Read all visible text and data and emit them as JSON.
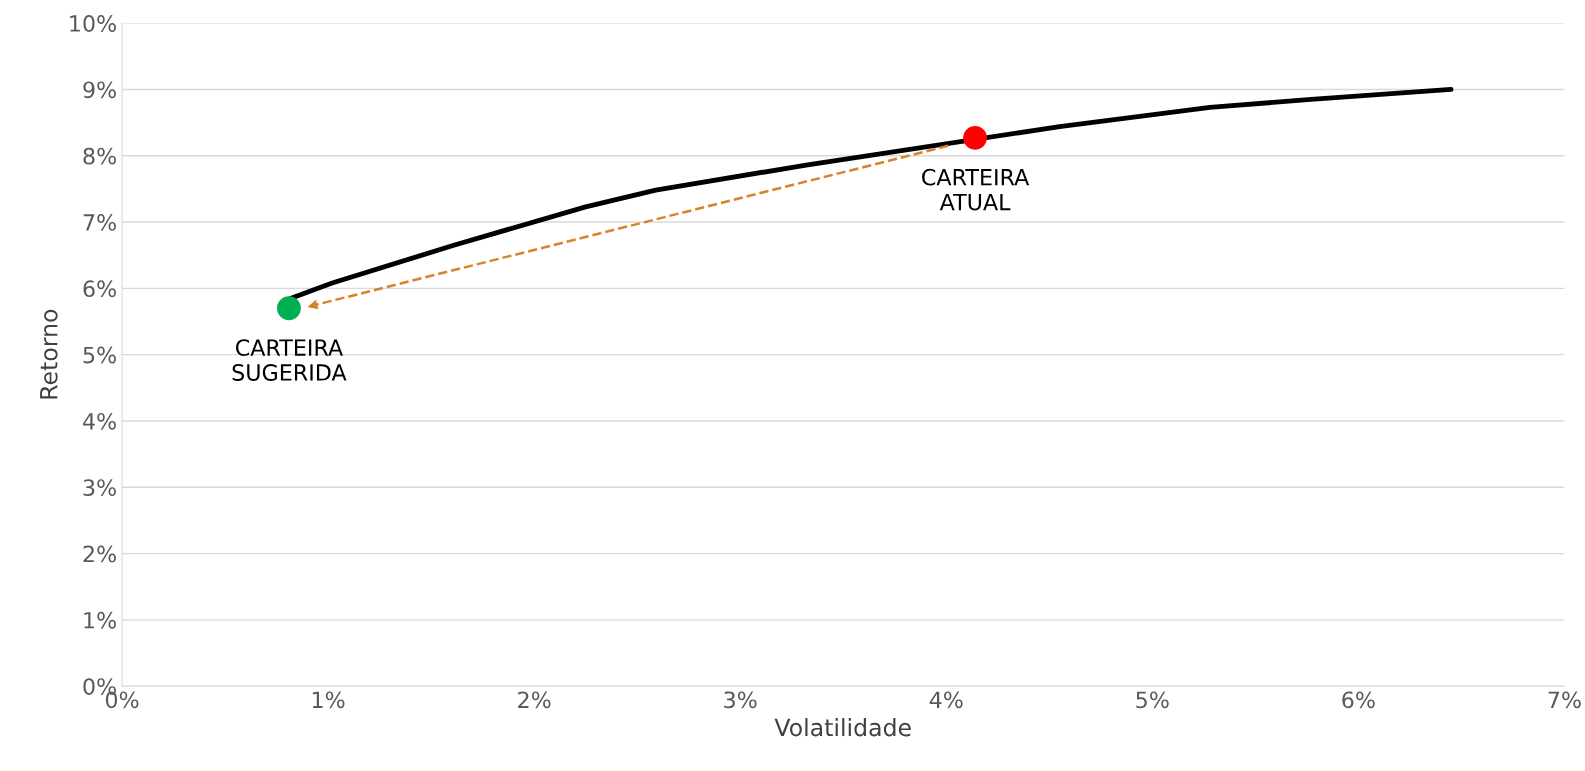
{
  "chart_data": {
    "type": "line",
    "xlabel": "Volatilidade",
    "ylabel": "Retorno",
    "xlim": [
      0,
      7
    ],
    "ylim": [
      0,
      10
    ],
    "xticks": [
      {
        "value": 0,
        "label": "0%"
      },
      {
        "value": 1,
        "label": "1%"
      },
      {
        "value": 2,
        "label": "2%"
      },
      {
        "value": 3,
        "label": "3%"
      },
      {
        "value": 4,
        "label": "4%"
      },
      {
        "value": 5,
        "label": "5%"
      },
      {
        "value": 6,
        "label": "6%"
      },
      {
        "value": 7,
        "label": "7%"
      }
    ],
    "yticks": [
      {
        "value": 0,
        "label": "0%"
      },
      {
        "value": 1,
        "label": "1%"
      },
      {
        "value": 2,
        "label": "2%"
      },
      {
        "value": 3,
        "label": "3%"
      },
      {
        "value": 4,
        "label": "4%"
      },
      {
        "value": 5,
        "label": "5%"
      },
      {
        "value": 6,
        "label": "6%"
      },
      {
        "value": 7,
        "label": "7%"
      },
      {
        "value": 8,
        "label": "8%"
      },
      {
        "value": 9,
        "label": "9%"
      },
      {
        "value": 10,
        "label": "10%"
      }
    ],
    "grid": "y",
    "legend": false,
    "series": [
      {
        "color": "#000000",
        "marker": "none",
        "line_style": "solid",
        "x": [
          0.82,
          1.02,
          1.61,
          2.25,
          2.59,
          3.32,
          4.55,
          5.28,
          5.77,
          6.45
        ],
        "values": [
          5.85,
          6.08,
          6.65,
          7.23,
          7.48,
          7.86,
          8.44,
          8.73,
          8.85,
          9.0
        ]
      },
      {
        "color": "#d9822b",
        "line_style": "dashed",
        "x": [
          4.01,
          0.9
        ],
        "values": [
          8.15,
          5.72
        ]
      },
      {
        "type": "scatter",
        "color": "#ff0000",
        "marker": "circle",
        "x": [
          4.14
        ],
        "values": [
          8.27
        ]
      },
      {
        "type": "scatter",
        "color": "#00b050",
        "marker": "circle",
        "x": [
          0.81
        ],
        "values": [
          5.7
        ]
      }
    ],
    "annotations": [
      {
        "text": "CARTEIRA\nATUAL",
        "x": 4.14,
        "y": 8.27
      },
      {
        "text": "CARTEIRA\nSUGERIDA",
        "x": 0.81,
        "y": 5.7
      }
    ]
  }
}
